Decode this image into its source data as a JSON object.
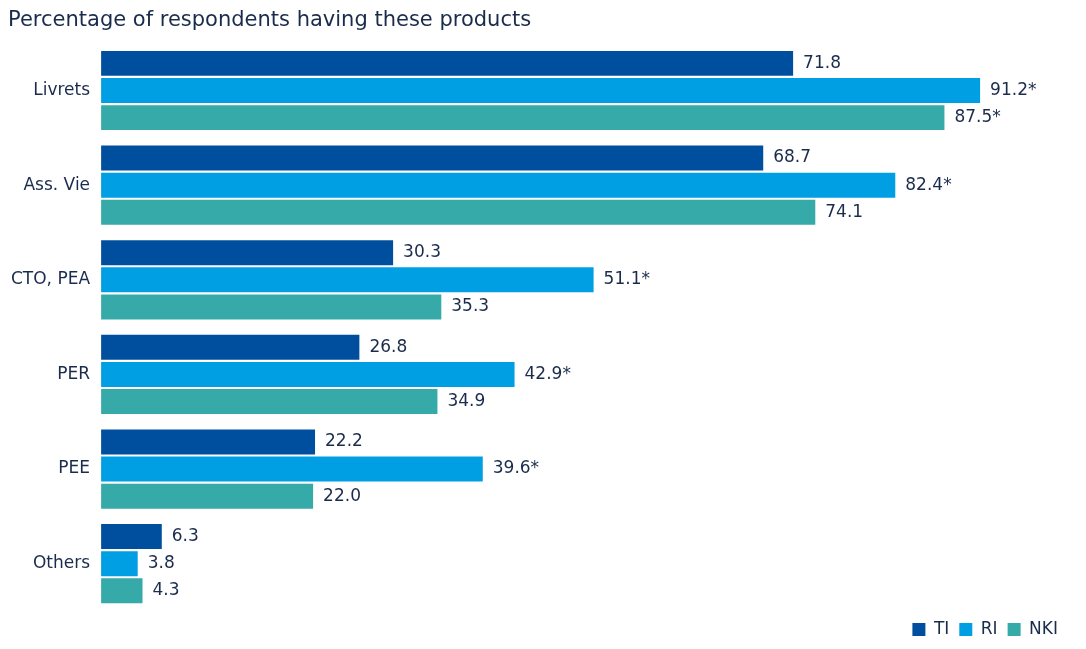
{
  "chart_data": {
    "type": "bar",
    "orientation": "horizontal",
    "title": "Percentage of respondents having these products",
    "categories": [
      "Livrets",
      "Ass. Vie",
      "CTO, PEA",
      "PER",
      "PEE",
      "Others"
    ],
    "series": [
      {
        "name": "TI",
        "color": "#004f9f",
        "values": [
          71.8,
          68.7,
          30.3,
          26.8,
          22.2,
          6.3
        ],
        "value_labels": [
          "71.8",
          "68.7",
          "30.3",
          "26.8",
          "22.2",
          "6.3"
        ]
      },
      {
        "name": "RI",
        "color": "#009fe3",
        "values": [
          91.2,
          82.4,
          51.1,
          42.9,
          39.6,
          3.8
        ],
        "value_labels": [
          "91.2*",
          "82.4*",
          "51.1*",
          "42.9*",
          "39.6*",
          "3.8"
        ]
      },
      {
        "name": "NKI",
        "color": "#36a9a9",
        "values": [
          87.5,
          74.1,
          35.3,
          34.9,
          22.0,
          4.3
        ],
        "value_labels": [
          "87.5*",
          "74.1",
          "35.3",
          "34.9",
          "22.0",
          "4.3"
        ]
      }
    ],
    "grid": false,
    "legend": "bottom right",
    "tick_labels": "y"
  }
}
